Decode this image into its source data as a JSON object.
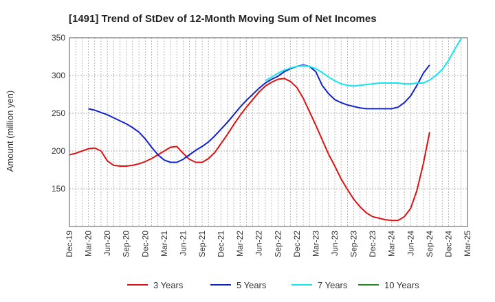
{
  "chart_data": {
    "type": "line",
    "title": "[1491]  Trend of StDev of 12-Month Moving Sum of Net Incomes",
    "ylabel": "Amount (million yen)",
    "xlabel": "",
    "ylim": [
      100,
      350
    ],
    "yticks": [
      150,
      200,
      250,
      300,
      350
    ],
    "xticks": [
      "Dec-19",
      "Mar-20",
      "Jun-20",
      "Sep-20",
      "Dec-20",
      "Mar-21",
      "Jun-21",
      "Sep-21",
      "Dec-21",
      "Mar-22",
      "Jun-22",
      "Sep-22",
      "Dec-22",
      "Mar-23",
      "Jun-23",
      "Sep-23",
      "Dec-23",
      "Mar-24",
      "Jun-24",
      "Sep-24",
      "Dec-24",
      "Mar-25"
    ],
    "grid": true,
    "legend_position": "bottom",
    "series": [
      {
        "name": "3 Years",
        "color": "#dd1111",
        "start_index": 0,
        "values": [
          195,
          197,
          200,
          203,
          204,
          200,
          187,
          181,
          180,
          180,
          181,
          183,
          186,
          190,
          195,
          200,
          205,
          206,
          197,
          189,
          185,
          185,
          190,
          198,
          210,
          222,
          235,
          247,
          258,
          268,
          278,
          286,
          291,
          295,
          296,
          292,
          284,
          270,
          252,
          234,
          215,
          196,
          180,
          163,
          149,
          136,
          126,
          118,
          113,
          111,
          109,
          108,
          108,
          113,
          124,
          148,
          183,
          225
        ]
      },
      {
        "name": "5 Years",
        "color": "#1122cc",
        "start_index": 3,
        "values": [
          256,
          254,
          251,
          248,
          244,
          240,
          236,
          231,
          225,
          216,
          205,
          195,
          188,
          185,
          185,
          189,
          195,
          201,
          206,
          212,
          220,
          229,
          238,
          248,
          258,
          267,
          275,
          283,
          290,
          295,
          299,
          305,
          309,
          312,
          314,
          312,
          305,
          287,
          276,
          268,
          264,
          261,
          259,
          257,
          256,
          256,
          256,
          256,
          256,
          258,
          264,
          273,
          287,
          303,
          314
        ]
      },
      {
        "name": "7 Years",
        "color": "#11e5ee",
        "start_index": 31,
        "values": [
          293,
          298,
          303,
          307,
          310,
          312,
          313,
          312,
          309,
          304,
          298,
          293,
          289,
          287,
          286,
          287,
          288,
          289,
          290,
          290,
          290,
          290,
          289,
          289,
          290,
          290,
          294,
          300,
          308,
          320,
          335,
          349
        ]
      },
      {
        "name": "10 Years",
        "color": "#228822",
        "start_index": 0,
        "values": []
      }
    ]
  }
}
